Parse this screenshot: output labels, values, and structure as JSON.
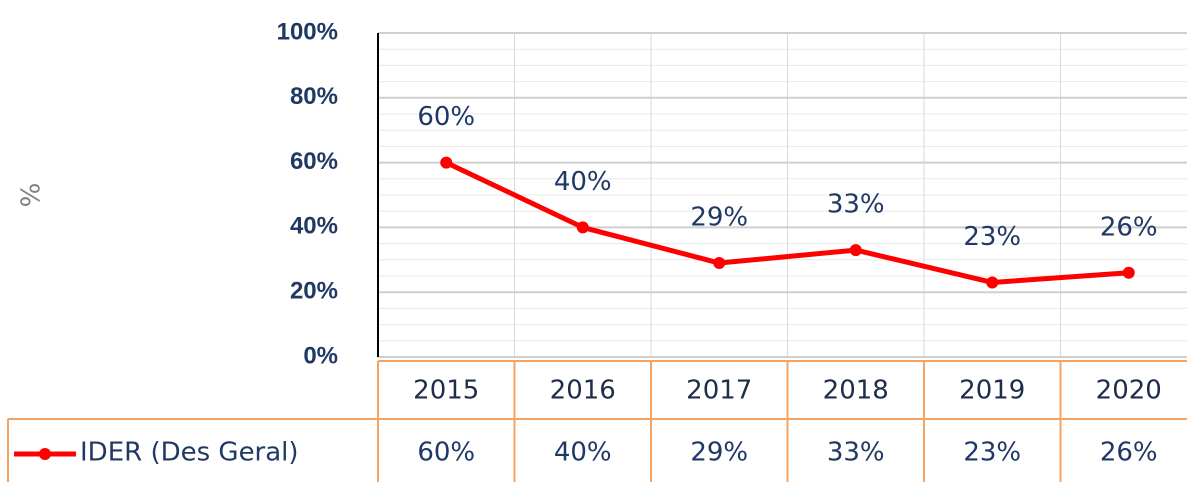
{
  "chart_data": {
    "type": "line",
    "y_label": "%",
    "categories": [
      "2015",
      "2016",
      "2017",
      "2018",
      "2019",
      "2020"
    ],
    "series": [
      {
        "name": "IDER (Des Geral)",
        "color": "#ff0000",
        "values": [
          60,
          40,
          29,
          33,
          23,
          26
        ],
        "value_labels": [
          "60%",
          "40%",
          "29%",
          "33%",
          "23%",
          "26%"
        ]
      }
    ],
    "ylim": [
      0,
      100
    ],
    "yticks": [
      {
        "value": 0,
        "label": "0%"
      },
      {
        "value": 20,
        "label": "20%"
      },
      {
        "value": 40,
        "label": "40%"
      },
      {
        "value": 60,
        "label": "60%"
      },
      {
        "value": 80,
        "label": "80%"
      },
      {
        "value": 100,
        "label": "100%"
      }
    ],
    "grid": true,
    "data_table": true
  }
}
